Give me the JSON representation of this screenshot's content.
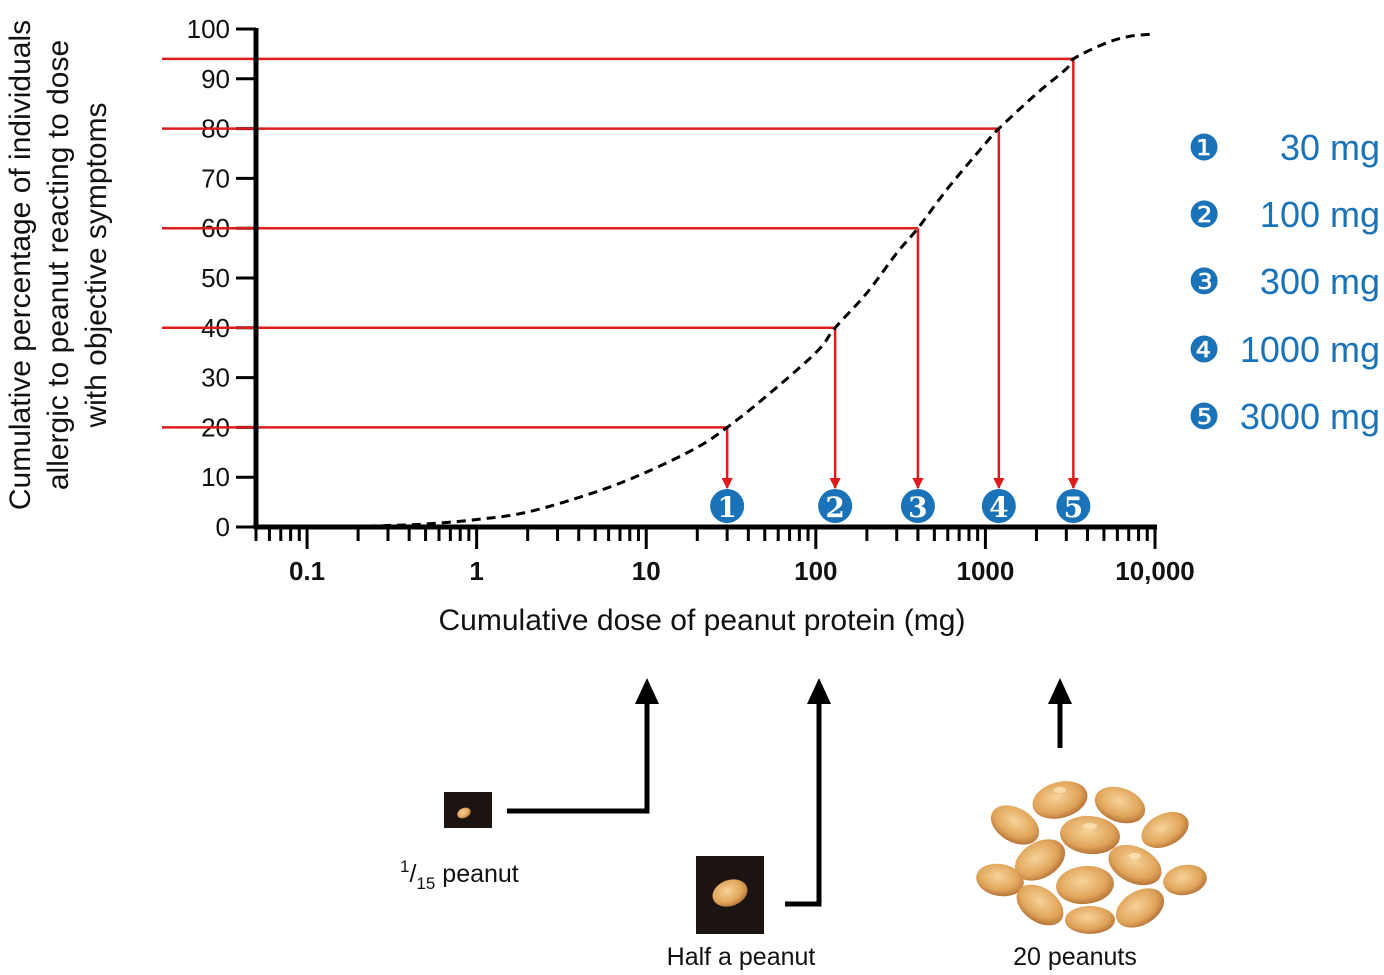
{
  "chart_data": {
    "type": "line",
    "x_scale": "log",
    "xlim": [
      0.05,
      10000
    ],
    "ylim": [
      0,
      100
    ],
    "xlabel": "Cumulative dose of peanut protein (mg)",
    "ylabel": [
      "Cumulative percentage of individuals",
      "allergic to peanut reacting to dose",
      "with objective symptoms"
    ],
    "y_ticks": [
      "0",
      "10",
      "20",
      "30",
      "40",
      "50",
      "60",
      "70",
      "80",
      "90",
      "100"
    ],
    "x_ticks": [
      {
        "value": 0.1,
        "label": "0.1"
      },
      {
        "value": 1,
        "label": "1"
      },
      {
        "value": 10,
        "label": "10"
      },
      {
        "value": 100,
        "label": "100"
      },
      {
        "value": 1000,
        "label": "1000"
      },
      {
        "value": 10000,
        "label": "10,000"
      }
    ],
    "series": [
      {
        "style": "dashed",
        "color": "#000000",
        "x": [
          0.15,
          0.3,
          0.5,
          1,
          2,
          5,
          10,
          20,
          30,
          50,
          100,
          130,
          200,
          300,
          400,
          600,
          1000,
          1200,
          2000,
          3000,
          3300,
          5000,
          7000,
          10000
        ],
        "y": [
          0,
          0.3,
          0.6,
          1.5,
          3,
          7,
          11,
          16,
          20,
          26,
          35,
          40,
          47,
          55,
          60,
          68,
          77,
          80,
          87,
          92,
          94,
          97,
          98.5,
          99
        ]
      }
    ],
    "reference_lines": [
      {
        "marker": "❶",
        "y": 20,
        "x": 30
      },
      {
        "marker": "❷",
        "y": 40,
        "x": 130
      },
      {
        "marker": "❸",
        "y": 60,
        "x": 400
      },
      {
        "marker": "❹",
        "y": 80,
        "x": 1200
      },
      {
        "marker": "❺",
        "y": 94,
        "x": 3300
      }
    ],
    "reference_color": "#e01b1b",
    "marker_color": "#1a73b9",
    "legend": [
      {
        "marker": "❶",
        "label": "30 mg"
      },
      {
        "marker": "❷",
        "label": "100 mg"
      },
      {
        "marker": "❸",
        "label": "300 mg"
      },
      {
        "marker": "❹",
        "label": "1000 mg"
      },
      {
        "marker": "❺",
        "label": "3000 mg"
      }
    ],
    "legend_placement": "right"
  },
  "illustrations": [
    {
      "pointer_dose": 10,
      "caption_sup": "1",
      "caption_sub": "15",
      "caption": " peanut"
    },
    {
      "pointer_dose": 100,
      "caption": "Half a peanut"
    },
    {
      "pointer_dose": 2000,
      "caption": "20 peanuts"
    }
  ]
}
